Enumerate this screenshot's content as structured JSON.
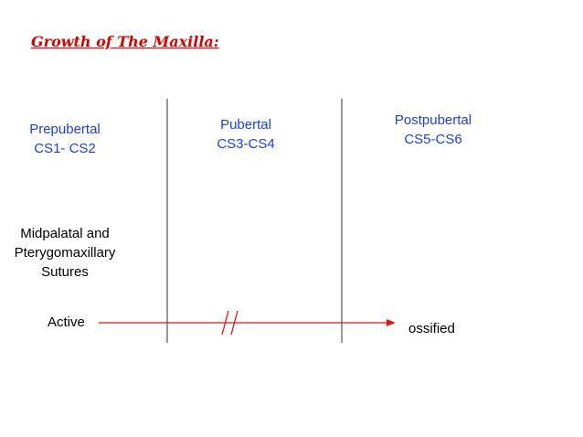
{
  "title": "Growth of The Maxilla:",
  "stages": [
    {
      "name": "Prepubertal",
      "range": "CS1- CS2"
    },
    {
      "name": "Pubertal",
      "range": "CS3-CS4"
    },
    {
      "name": "Postpubertal",
      "range": "CS5-CS6"
    }
  ],
  "structure": {
    "line1": "Midpalatal and",
    "line2": "Pterygomaxillary",
    "line3": "Sutures"
  },
  "start_state": "Active",
  "end_state": "ossified",
  "colors": {
    "title": "#d40000",
    "stage_text": "#1f3fd6",
    "arrow": "#e31414",
    "divider": "#333333",
    "body_text": "#000000"
  }
}
